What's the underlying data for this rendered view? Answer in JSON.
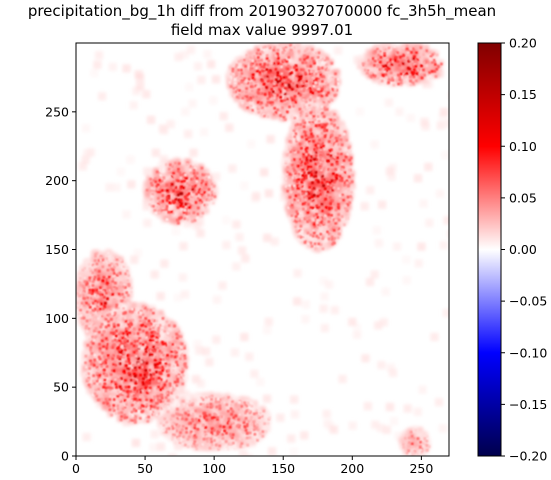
{
  "chart_data": {
    "type": "heatmap",
    "title_line1": "precipitation_bg_1h diff from 20190327070000 fc_3h5h_mean",
    "title_line2": "field max value 9997.01",
    "xlabel": "",
    "ylabel": "",
    "xlim": [
      0,
      270
    ],
    "ylim": [
      0,
      300
    ],
    "x_ticks": [
      "0",
      "50",
      "100",
      "150",
      "200",
      "250"
    ],
    "y_ticks": [
      "0",
      "50",
      "100",
      "150",
      "200",
      "250"
    ],
    "colormap": "seismic",
    "colorbar": {
      "range": [
        -0.2,
        0.2
      ],
      "ticks": [
        "0.20",
        "0.15",
        "0.10",
        "0.05",
        "0.00",
        "−0.05",
        "−0.10",
        "−0.15",
        "−0.20"
      ]
    },
    "grid": false,
    "features": [
      {
        "name": "north-east band",
        "x": [
          110,
          190
        ],
        "y": [
          245,
          300
        ],
        "max_value": 0.2
      },
      {
        "name": "central curved band",
        "x": [
          150,
          200
        ],
        "y": [
          150,
          255
        ],
        "max_value": 0.2
      },
      {
        "name": "top-right band",
        "x": [
          205,
          265
        ],
        "y": [
          270,
          300
        ],
        "max_value": 0.2
      },
      {
        "name": "diagonal streak",
        "x": [
          50,
          100
        ],
        "y": [
          170,
          215
        ],
        "max_value": 0.2
      },
      {
        "name": "left edge cluster",
        "x": [
          0,
          40
        ],
        "y": [
          80,
          150
        ],
        "max_value": 0.15
      },
      {
        "name": "bottom-left cluster",
        "x": [
          5,
          80
        ],
        "y": [
          25,
          110
        ],
        "max_value": 0.2
      },
      {
        "name": "bottom band",
        "x": [
          60,
          140
        ],
        "y": [
          5,
          45
        ],
        "max_value": 0.12
      },
      {
        "name": "bottom-right patch",
        "x": [
          235,
          255
        ],
        "y": [
          0,
          20
        ],
        "max_value": 0.1
      }
    ]
  },
  "colors": {
    "colormap_stops": [
      "#00004c",
      "#0000ff",
      "#ffffff",
      "#ff0000",
      "#800000"
    ],
    "axis": "#000000"
  }
}
